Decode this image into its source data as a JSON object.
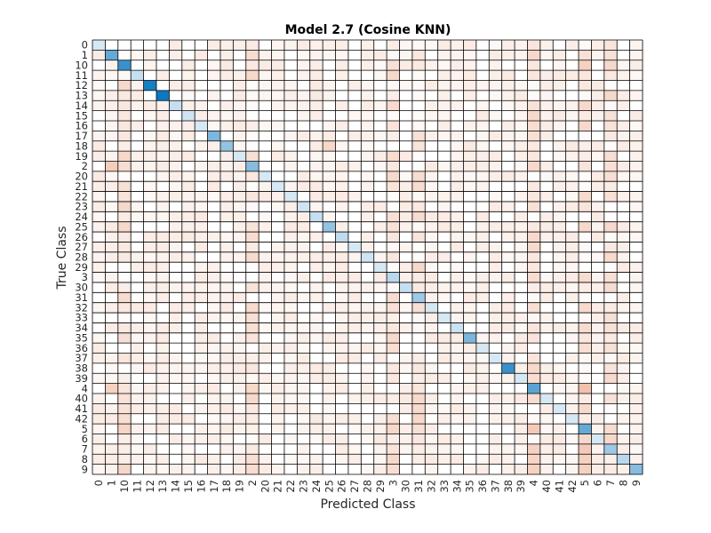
{
  "chart_data": {
    "type": "heatmap",
    "title": "Model 2.7 (Cosine KNN)",
    "xlabel": "Predicted Class",
    "ylabel": "True Class",
    "classes": [
      "0",
      "1",
      "10",
      "11",
      "12",
      "13",
      "14",
      "15",
      "16",
      "17",
      "18",
      "19",
      "2",
      "20",
      "21",
      "22",
      "23",
      "24",
      "25",
      "26",
      "27",
      "28",
      "29",
      "3",
      "30",
      "31",
      "32",
      "33",
      "34",
      "35",
      "36",
      "37",
      "38",
      "39",
      "4",
      "40",
      "41",
      "42",
      "5",
      "6",
      "7",
      "8",
      "9"
    ],
    "diagonal_intensity": [
      0.05,
      0.55,
      0.75,
      0.12,
      0.9,
      0.95,
      0.12,
      0.08,
      0.05,
      0.45,
      0.35,
      0.05,
      0.4,
      0.05,
      0.05,
      0.05,
      0.08,
      0.12,
      0.35,
      0.15,
      0.05,
      0.08,
      0.05,
      0.18,
      0.12,
      0.3,
      0.05,
      0.05,
      0.1,
      0.45,
      0.05,
      0.05,
      0.75,
      0.05,
      0.6,
      0.05,
      0.05,
      0.05,
      0.55,
      0.05,
      0.3,
      0.18,
      0.4
    ],
    "off_diagonal_hotspots": [
      {
        "true": "1",
        "pred": "2",
        "intensity": 0.45
      },
      {
        "true": "1",
        "pred": "4",
        "intensity": 0.5
      },
      {
        "true": "1",
        "pred": "5",
        "intensity": 0.4
      },
      {
        "true": "10",
        "pred": "5",
        "intensity": 0.6
      },
      {
        "true": "10",
        "pred": "4",
        "intensity": 0.3
      },
      {
        "true": "18",
        "pred": "25",
        "intensity": 0.5
      },
      {
        "true": "2",
        "pred": "1",
        "intensity": 0.65
      },
      {
        "true": "2",
        "pred": "4",
        "intensity": 0.5
      },
      {
        "true": "2",
        "pred": "7",
        "intensity": 0.4
      },
      {
        "true": "2",
        "pred": "5",
        "intensity": 0.35
      },
      {
        "true": "3",
        "pred": "4",
        "intensity": 0.45
      },
      {
        "true": "3",
        "pred": "5",
        "intensity": 0.45
      },
      {
        "true": "3",
        "pred": "7",
        "intensity": 0.4
      },
      {
        "true": "4",
        "pred": "1",
        "intensity": 0.6
      },
      {
        "true": "4",
        "pred": "5",
        "intensity": 0.8
      },
      {
        "true": "4",
        "pred": "10",
        "intensity": 0.35
      },
      {
        "true": "5",
        "pred": "4",
        "intensity": 0.7
      },
      {
        "true": "5",
        "pred": "10",
        "intensity": 0.55
      },
      {
        "true": "5",
        "pred": "3",
        "intensity": 0.5
      },
      {
        "true": "5",
        "pred": "7",
        "intensity": 0.45
      },
      {
        "true": "7",
        "pred": "4",
        "intensity": 0.6
      },
      {
        "true": "7",
        "pred": "5",
        "intensity": 0.7
      },
      {
        "true": "8",
        "pred": "4",
        "intensity": 0.55
      },
      {
        "true": "8",
        "pred": "5",
        "intensity": 0.6
      },
      {
        "true": "9",
        "pred": "4",
        "intensity": 0.6
      },
      {
        "true": "9",
        "pred": "5",
        "intensity": 0.6
      },
      {
        "true": "9",
        "pred": "10",
        "intensity": 0.5
      },
      {
        "true": "25",
        "pred": "2",
        "intensity": 0.35
      },
      {
        "true": "38",
        "pred": "2",
        "intensity": 0.3
      }
    ],
    "colors": {
      "correct": "#0072bd",
      "incorrect": "#d95319",
      "grid": "#000000",
      "background": "#ffffff"
    }
  }
}
